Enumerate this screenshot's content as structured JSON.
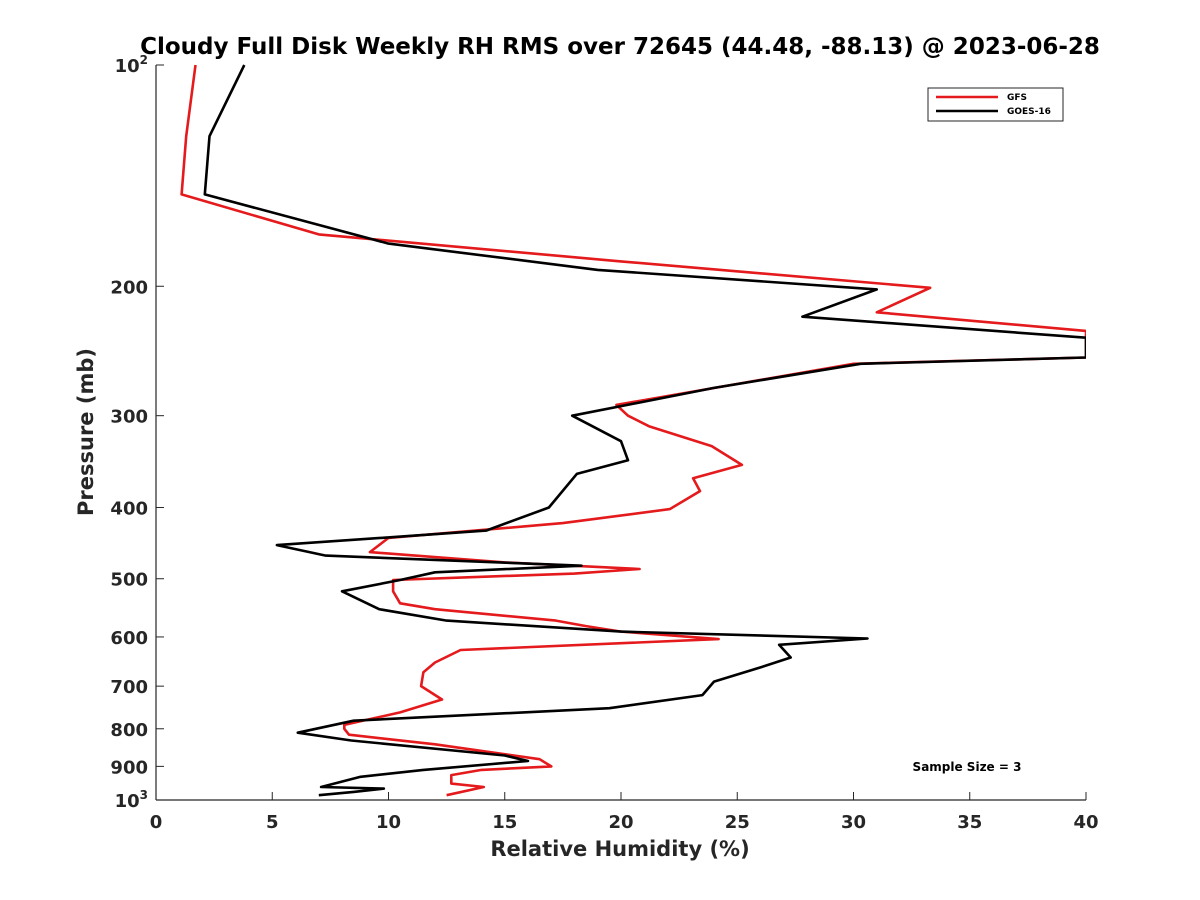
{
  "chart_data": {
    "type": "line",
    "title": "Cloudy Full Disk Weekly RH RMS over 72645 (44.48, -88.13) @ 2023-06-28",
    "xlabel": "Relative Humidity (%)",
    "ylabel": "Pressure (mb)",
    "xlim": [
      0,
      40
    ],
    "ylim": [
      100,
      1000
    ],
    "y_scale": "log",
    "y_reversed": true,
    "grid": false,
    "legend_position": "top-right",
    "x_ticks": [
      0,
      5,
      10,
      15,
      20,
      25,
      30,
      35,
      40
    ],
    "y_ticks": [
      {
        "value": 100,
        "base": "10",
        "exp": "2"
      },
      {
        "value": 200,
        "label": "200"
      },
      {
        "value": 300,
        "label": "300"
      },
      {
        "value": 400,
        "label": "400"
      },
      {
        "value": 500,
        "label": "500"
      },
      {
        "value": 600,
        "label": "600"
      },
      {
        "value": 700,
        "label": "700"
      },
      {
        "value": 800,
        "label": "800"
      },
      {
        "value": 900,
        "label": "900"
      },
      {
        "value": 1000,
        "base": "10",
        "exp": "3"
      }
    ],
    "annotation": "Sample Size = 3",
    "series": [
      {
        "name": "GFS",
        "color": "#e41a1c",
        "points": [
          [
            1.7,
            100
          ],
          [
            1.3,
            125
          ],
          [
            1.1,
            150
          ],
          [
            7.0,
            170
          ],
          [
            20.0,
            185
          ],
          [
            33.3,
            201
          ],
          [
            31.0,
            217
          ],
          [
            40.0,
            230
          ],
          [
            40.0,
            250
          ],
          [
            30.0,
            255
          ],
          [
            19.8,
            290
          ],
          [
            20.3,
            300
          ],
          [
            21.2,
            310
          ],
          [
            23.9,
            330
          ],
          [
            25.2,
            350
          ],
          [
            23.1,
            365
          ],
          [
            23.4,
            380
          ],
          [
            22.1,
            402
          ],
          [
            17.5,
            420
          ],
          [
            10.0,
            440
          ],
          [
            9.2,
            460
          ],
          [
            15.0,
            475
          ],
          [
            20.8,
            485
          ],
          [
            18.0,
            492
          ],
          [
            14.0,
            497
          ],
          [
            10.2,
            502
          ],
          [
            10.2,
            520
          ],
          [
            10.5,
            540
          ],
          [
            12.0,
            550
          ],
          [
            17.2,
            570
          ],
          [
            18.5,
            580
          ],
          [
            20.0,
            590
          ],
          [
            24.2,
            604
          ],
          [
            13.1,
            625
          ],
          [
            12.0,
            650
          ],
          [
            11.5,
            670
          ],
          [
            11.4,
            700
          ],
          [
            12.3,
            730
          ],
          [
            10.5,
            760
          ],
          [
            8.1,
            790
          ],
          [
            8.1,
            800
          ],
          [
            8.3,
            815
          ],
          [
            12.0,
            840
          ],
          [
            16.5,
            880
          ],
          [
            17.0,
            900
          ],
          [
            14.0,
            910
          ],
          [
            12.7,
            925
          ],
          [
            12.7,
            950
          ],
          [
            14.1,
            960
          ],
          [
            12.5,
            985
          ]
        ]
      },
      {
        "name": "GOES-16",
        "color": "#000000",
        "points": [
          [
            3.8,
            100
          ],
          [
            2.3,
            125
          ],
          [
            2.1,
            150
          ],
          [
            10.0,
            175
          ],
          [
            19.0,
            190
          ],
          [
            31.0,
            202
          ],
          [
            27.8,
            220
          ],
          [
            40.0,
            235
          ],
          [
            40.0,
            250
          ],
          [
            30.3,
            255
          ],
          [
            24.0,
            275
          ],
          [
            17.9,
            300
          ],
          [
            20.0,
            325
          ],
          [
            20.3,
            345
          ],
          [
            18.1,
            360
          ],
          [
            16.9,
            400
          ],
          [
            14.2,
            430
          ],
          [
            5.2,
            450
          ],
          [
            7.3,
            465
          ],
          [
            18.3,
            480
          ],
          [
            12.0,
            490
          ],
          [
            10.5,
            502
          ],
          [
            8.0,
            520
          ],
          [
            9.6,
            550
          ],
          [
            12.5,
            570
          ],
          [
            20.0,
            590
          ],
          [
            30.6,
            603
          ],
          [
            26.8,
            615
          ],
          [
            27.3,
            640
          ],
          [
            26.0,
            660
          ],
          [
            24.0,
            690
          ],
          [
            23.5,
            720
          ],
          [
            19.5,
            750
          ],
          [
            8.5,
            780
          ],
          [
            6.1,
            810
          ],
          [
            8.4,
            830
          ],
          [
            15.0,
            870
          ],
          [
            16.0,
            885
          ],
          [
            11.5,
            910
          ],
          [
            8.8,
            930
          ],
          [
            7.1,
            960
          ],
          [
            9.8,
            965
          ],
          [
            8.5,
            975
          ],
          [
            7.0,
            985
          ]
        ]
      }
    ]
  }
}
